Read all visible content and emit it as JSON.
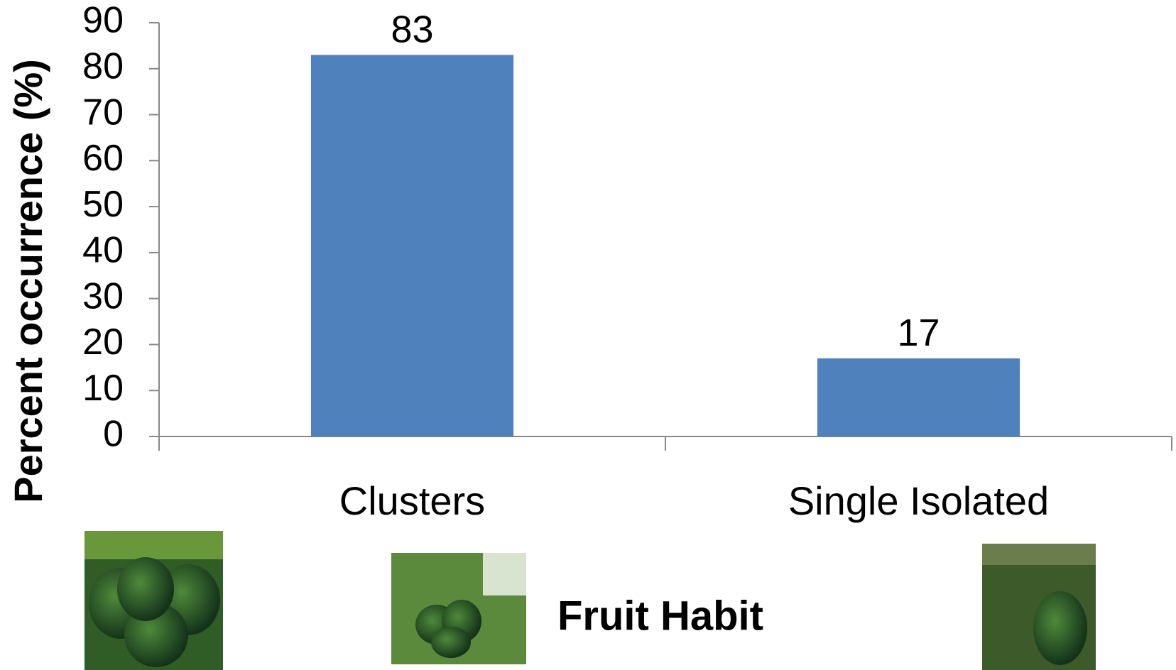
{
  "chart_data": {
    "type": "bar",
    "y_label": "Percent occurrence (%)",
    "x_label": "Fruit Habit",
    "categories": [
      "Clusters",
      "Single Isolated"
    ],
    "values": [
      83,
      17
    ],
    "color": "#4f81bd",
    "ylim": [
      0,
      90
    ],
    "yticks": [
      0,
      10,
      20,
      30,
      40,
      50,
      60,
      70,
      80,
      90
    ],
    "grid": false
  }
}
